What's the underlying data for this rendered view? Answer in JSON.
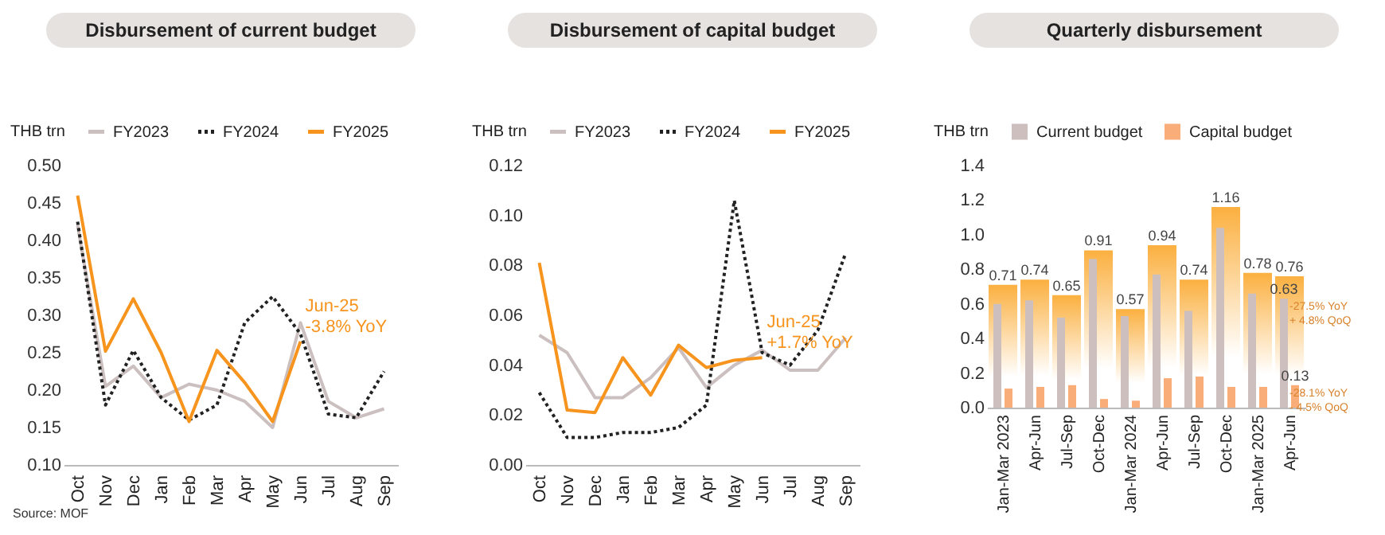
{
  "chart_data": [
    {
      "type": "line",
      "title": "Disbursement of current budget",
      "ylabel": "THB trn",
      "legend": "top",
      "categories": [
        "Oct",
        "Nov",
        "Dec",
        "Jan",
        "Feb",
        "Mar",
        "Apr",
        "May",
        "Jun",
        "Jul",
        "Aug",
        "Sep"
      ],
      "ylim": [
        0.1,
        0.5
      ],
      "yticks": [
        {
          "value": 0.1,
          "label": "0.10"
        },
        {
          "value": 0.15,
          "label": "0.15"
        },
        {
          "value": 0.2,
          "label": "0.20"
        },
        {
          "value": 0.25,
          "label": "0.25"
        },
        {
          "value": 0.3,
          "label": "0.30"
        },
        {
          "value": 0.35,
          "label": "0.35"
        },
        {
          "value": 0.4,
          "label": "0.40"
        },
        {
          "value": 0.45,
          "label": "0.45"
        },
        {
          "value": 0.5,
          "label": "0.50"
        }
      ],
      "series": [
        {
          "name": "FY2023",
          "color": "#cbbfbf",
          "line_style": "solid",
          "values": [
            0.42,
            0.205,
            0.232,
            0.19,
            0.208,
            0.2,
            0.185,
            0.15,
            0.29,
            0.185,
            0.163,
            0.175
          ]
        },
        {
          "name": "FY2024",
          "color": "#222222",
          "line_style": "dotted",
          "values": [
            0.425,
            0.18,
            0.253,
            0.19,
            0.16,
            0.18,
            0.29,
            0.325,
            0.275,
            0.168,
            0.163,
            0.225
          ]
        },
        {
          "name": "FY2025",
          "color": "#f7941d",
          "line_style": "solid",
          "values": [
            0.46,
            0.252,
            0.322,
            0.25,
            0.158,
            0.253,
            0.21,
            0.158,
            0.265,
            null,
            null,
            null
          ]
        }
      ],
      "annotations": [
        {
          "text": "Jun-25",
          "x": "Jun",
          "y": 0.265
        },
        {
          "text": "-3.8% YoY",
          "x": "Jun",
          "y": 0.265
        },
        "Source: MOF"
      ]
    },
    {
      "type": "line",
      "title": "Disbursement of capital budget",
      "ylabel": "THB trn",
      "legend": "top",
      "categories": [
        "Oct",
        "Nov",
        "Dec",
        "Jan",
        "Feb",
        "Mar",
        "Apr",
        "May",
        "Jun",
        "Jul",
        "Aug",
        "Sep"
      ],
      "ylim": [
        0,
        0.12
      ],
      "yticks": [
        {
          "value": 0,
          "label": "0.00"
        },
        {
          "value": 0.02,
          "label": "0.02"
        },
        {
          "value": 0.04,
          "label": "0.04"
        },
        {
          "value": 0.06,
          "label": "0.06"
        },
        {
          "value": 0.08,
          "label": "0.08"
        },
        {
          "value": 0.1,
          "label": "0.10"
        },
        {
          "value": 0.12,
          "label": "0.12"
        }
      ],
      "series": [
        {
          "name": "FY2023",
          "color": "#cbbfbf",
          "line_style": "solid",
          "values": [
            0.052,
            0.045,
            0.027,
            0.027,
            0.035,
            0.047,
            0.031,
            0.04,
            0.046,
            0.038,
            0.038,
            0.051
          ]
        },
        {
          "name": "FY2024",
          "color": "#222222",
          "line_style": "dotted",
          "values": [
            0.029,
            0.011,
            0.011,
            0.013,
            0.013,
            0.015,
            0.024,
            0.106,
            0.045,
            0.04,
            0.054,
            0.085
          ]
        },
        {
          "name": "FY2025",
          "color": "#f7941d",
          "line_style": "solid",
          "values": [
            0.081,
            0.022,
            0.021,
            0.043,
            0.028,
            0.048,
            0.039,
            0.042,
            0.043,
            null,
            null,
            null
          ]
        }
      ],
      "annotations": [
        {
          "text": "Jun-25",
          "x": "Jun",
          "y": 0.043
        },
        {
          "text": "+1.7% YoY",
          "x": "Jun",
          "y": 0.043
        }
      ]
    },
    {
      "type": "bar",
      "title": "Quarterly disbursement",
      "ylabel": "THB trn",
      "legend": "top",
      "categories": [
        "Jan-Mar 2023",
        "Apr-Jun",
        "Jul-Sep",
        "Oct-Dec",
        "Jan-Mar 2024",
        "Apr-Jun",
        "Jul-Sep",
        "Oct-Dec",
        "Jan-Mar 2025",
        "Apr-Jun"
      ],
      "ylim": [
        0,
        1.4
      ],
      "yticks": [
        {
          "value": 0,
          "label": "0.0"
        },
        {
          "value": 0.2,
          "label": "0.2"
        },
        {
          "value": 0.4,
          "label": "0.4"
        },
        {
          "value": 0.6,
          "label": "0.6"
        },
        {
          "value": 0.8,
          "label": "0.8"
        },
        {
          "value": 1.0,
          "label": "1.0"
        },
        {
          "value": 1.2,
          "label": "1.2"
        },
        {
          "value": 1.4,
          "label": "1.4"
        }
      ],
      "series": [
        {
          "color": "#fbb040",
          "values": [
            0.71,
            0.74,
            0.65,
            0.91,
            0.57,
            0.94,
            0.74,
            1.16,
            0.78,
            0.76
          ],
          "value_labels": [
            "0.71",
            "0.74",
            "0.65",
            "0.91",
            "0.57",
            "0.94",
            "0.74",
            "1.16",
            "0.78",
            "0.76"
          ]
        },
        {
          "name": "Current budget",
          "color": "#cdbfbd",
          "values": [
            0.6,
            0.62,
            0.52,
            0.86,
            0.53,
            0.77,
            0.56,
            1.04,
            0.66,
            0.63
          ],
          "value_labels": [
            null,
            null,
            null,
            null,
            null,
            null,
            null,
            null,
            null,
            "0.63"
          ]
        },
        {
          "name": "Capital budget",
          "color": "#f9ad78",
          "values": [
            0.11,
            0.12,
            0.13,
            0.05,
            0.04,
            0.17,
            0.18,
            0.12,
            0.12,
            0.13
          ],
          "value_labels": [
            null,
            null,
            null,
            null,
            null,
            null,
            null,
            null,
            null,
            "0.13"
          ]
        }
      ],
      "annotations": [
        "-27.5% YoY",
        "+ 4.8% QoQ",
        "-28.1% YoY",
        "- 4.5% QoQ"
      ]
    }
  ]
}
